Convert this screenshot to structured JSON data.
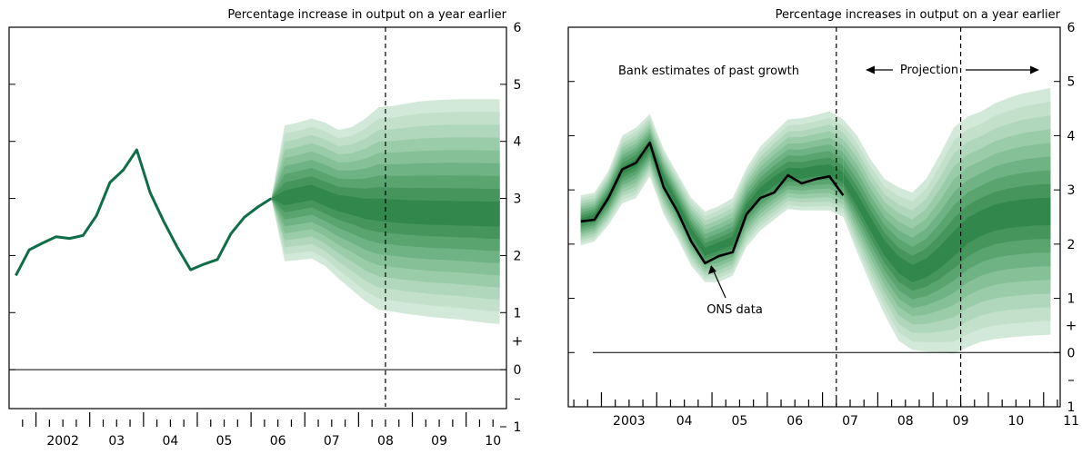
{
  "chart_data": [
    {
      "type": "area",
      "title": "Percentage increase in output on a year earlier",
      "x_tick_labels": [
        {
          "year": 2002,
          "label": "2002"
        },
        {
          "year": 2003,
          "label": "03"
        },
        {
          "year": 2004,
          "label": "04"
        },
        {
          "year": 2005,
          "label": "05"
        },
        {
          "year": 2006,
          "label": "06"
        },
        {
          "year": 2007,
          "label": "07"
        },
        {
          "year": 2008,
          "label": "08"
        },
        {
          "year": 2009,
          "label": "09"
        },
        {
          "year": 2010,
          "label": "10"
        }
      ],
      "xlim": [
        2001.5,
        2010.75
      ],
      "ylim": [
        -1,
        6
      ],
      "y_tick_labels": [
        {
          "value": 6,
          "label": "6"
        },
        {
          "value": 5,
          "label": "5"
        },
        {
          "value": 4,
          "label": "4"
        },
        {
          "value": 3,
          "label": "3"
        },
        {
          "value": 2,
          "label": "2"
        },
        {
          "value": 1,
          "label": "1"
        },
        {
          "value": 0,
          "label": "0"
        },
        {
          "value": -1,
          "label": "1"
        }
      ],
      "sign_labels": {
        "plus": "+",
        "minus": "–"
      },
      "projection_marker_x": 2008.5,
      "history": {
        "x": [
          2001.625,
          2001.875,
          2002.125,
          2002.375,
          2002.625,
          2002.875,
          2003.125,
          2003.375,
          2003.625,
          2003.875,
          2004.125,
          2004.375,
          2004.625,
          2004.875,
          2005.125,
          2005.375,
          2005.625,
          2005.875,
          2006.125,
          2006.375
        ],
        "y": [
          1.65,
          2.1,
          2.22,
          2.33,
          2.3,
          2.35,
          2.7,
          3.28,
          3.5,
          3.85,
          3.1,
          2.6,
          2.15,
          1.75,
          1.85,
          1.93,
          2.38,
          2.67,
          2.85,
          3.0
        ]
      },
      "fan": {
        "x": [
          2006.375,
          2006.625,
          2006.875,
          2007.125,
          2007.375,
          2007.625,
          2007.875,
          2008.125,
          2008.375,
          2008.625,
          2008.875,
          2009.125,
          2009.375,
          2009.625,
          2009.875,
          2010.125,
          2010.375,
          2010.625
        ],
        "central": [
          3.0,
          3.0,
          3.05,
          3.1,
          3.0,
          2.92,
          2.88,
          2.82,
          2.8,
          2.78,
          2.76,
          2.75,
          2.74,
          2.74,
          2.73,
          2.73,
          2.72,
          2.72
        ],
        "upper90": [
          3.0,
          4.28,
          4.33,
          4.4,
          4.33,
          4.2,
          4.25,
          4.4,
          4.6,
          4.62,
          4.66,
          4.7,
          4.72,
          4.73,
          4.74,
          4.74,
          4.74,
          4.74
        ],
        "lower90": [
          3.0,
          1.9,
          1.92,
          1.95,
          1.82,
          1.6,
          1.4,
          1.2,
          1.05,
          1.02,
          0.98,
          0.95,
          0.92,
          0.9,
          0.88,
          0.85,
          0.82,
          0.8
        ]
      }
    },
    {
      "type": "area",
      "title": "Percentage increases in output on a year earlier",
      "x_tick_labels": [
        {
          "year": 2003,
          "label": "2003"
        },
        {
          "year": 2004,
          "label": "04"
        },
        {
          "year": 2005,
          "label": "05"
        },
        {
          "year": 2006,
          "label": "06"
        },
        {
          "year": 2007,
          "label": "07"
        },
        {
          "year": 2008,
          "label": "08"
        },
        {
          "year": 2009,
          "label": "09"
        },
        {
          "year": 2010,
          "label": "10"
        },
        {
          "year": 2011,
          "label": "11"
        }
      ],
      "xlim": [
        2002.4,
        2011.3
      ],
      "ylim": [
        -1,
        6
      ],
      "y_tick_labels": [
        {
          "value": 6,
          "label": "6"
        },
        {
          "value": 5,
          "label": "5"
        },
        {
          "value": 4,
          "label": "4"
        },
        {
          "value": 3,
          "label": "3"
        },
        {
          "value": 2,
          "label": "2"
        },
        {
          "value": 1,
          "label": "1"
        },
        {
          "value": 0,
          "label": "0"
        },
        {
          "value": -1,
          "label": "1"
        }
      ],
      "sign_labels": {
        "plus": "+",
        "minus": "–"
      },
      "annotations": {
        "bank_estimates": "Bank estimates of past growth",
        "projection": "Projection",
        "ons": "ONS data"
      },
      "projection_start_x": 2007.25,
      "projection_marker_x": 2009.5,
      "ons_data": {
        "x": [
          2002.625,
          2002.875,
          2003.125,
          2003.375,
          2003.625,
          2003.875,
          2004.125,
          2004.375,
          2004.625,
          2004.875,
          2005.125,
          2005.375,
          2005.625,
          2005.875,
          2006.125,
          2006.375,
          2006.625,
          2006.875,
          2007.125,
          2007.375
        ],
        "y": [
          2.42,
          2.45,
          2.85,
          3.38,
          3.5,
          3.87,
          3.05,
          2.6,
          2.05,
          1.65,
          1.78,
          1.85,
          2.55,
          2.85,
          2.95,
          3.27,
          3.12,
          3.2,
          3.25,
          2.9
        ]
      },
      "past_fan": {
        "x": [
          2002.625,
          2002.875,
          2003.125,
          2003.375,
          2003.625,
          2003.875,
          2004.125,
          2004.375,
          2004.625,
          2004.875,
          2005.125,
          2005.375,
          2005.625,
          2005.875,
          2006.125,
          2006.375,
          2006.625,
          2006.875,
          2007.125,
          2007.375
        ],
        "central": [
          2.42,
          2.5,
          2.85,
          3.35,
          3.5,
          3.8,
          3.2,
          2.72,
          2.22,
          1.85,
          1.95,
          2.05,
          2.65,
          2.95,
          3.15,
          3.3,
          3.28,
          3.33,
          3.35,
          3.2
        ],
        "upper90": [
          2.9,
          2.95,
          3.35,
          4.0,
          4.15,
          4.4,
          3.75,
          3.3,
          2.85,
          2.6,
          2.7,
          2.85,
          3.4,
          3.8,
          4.05,
          4.3,
          4.32,
          4.38,
          4.45,
          4.3
        ],
        "lower90": [
          1.98,
          2.05,
          2.35,
          2.75,
          2.85,
          3.25,
          2.55,
          2.1,
          1.6,
          1.3,
          1.3,
          1.42,
          1.95,
          2.25,
          2.45,
          2.65,
          2.62,
          2.62,
          2.62,
          2.5
        ]
      },
      "fan": {
        "x": [
          2007.375,
          2007.625,
          2007.875,
          2008.125,
          2008.375,
          2008.625,
          2008.875,
          2009.125,
          2009.375,
          2009.625,
          2009.875,
          2010.125,
          2010.375,
          2010.625,
          2010.875,
          2011.125
        ],
        "central": [
          3.2,
          2.8,
          2.35,
          1.92,
          1.62,
          1.45,
          1.55,
          1.75,
          2.0,
          2.25,
          2.4,
          2.5,
          2.55,
          2.58,
          2.6,
          2.6
        ],
        "upper90": [
          4.3,
          4.0,
          3.55,
          3.2,
          3.05,
          2.95,
          3.2,
          3.65,
          4.15,
          4.35,
          4.45,
          4.6,
          4.7,
          4.78,
          4.83,
          4.88
        ],
        "lower90": [
          2.5,
          1.85,
          1.25,
          0.7,
          0.22,
          0.05,
          0.02,
          0.0,
          -0.02,
          0.1,
          0.2,
          0.25,
          0.28,
          0.3,
          0.32,
          0.33
        ]
      }
    }
  ]
}
